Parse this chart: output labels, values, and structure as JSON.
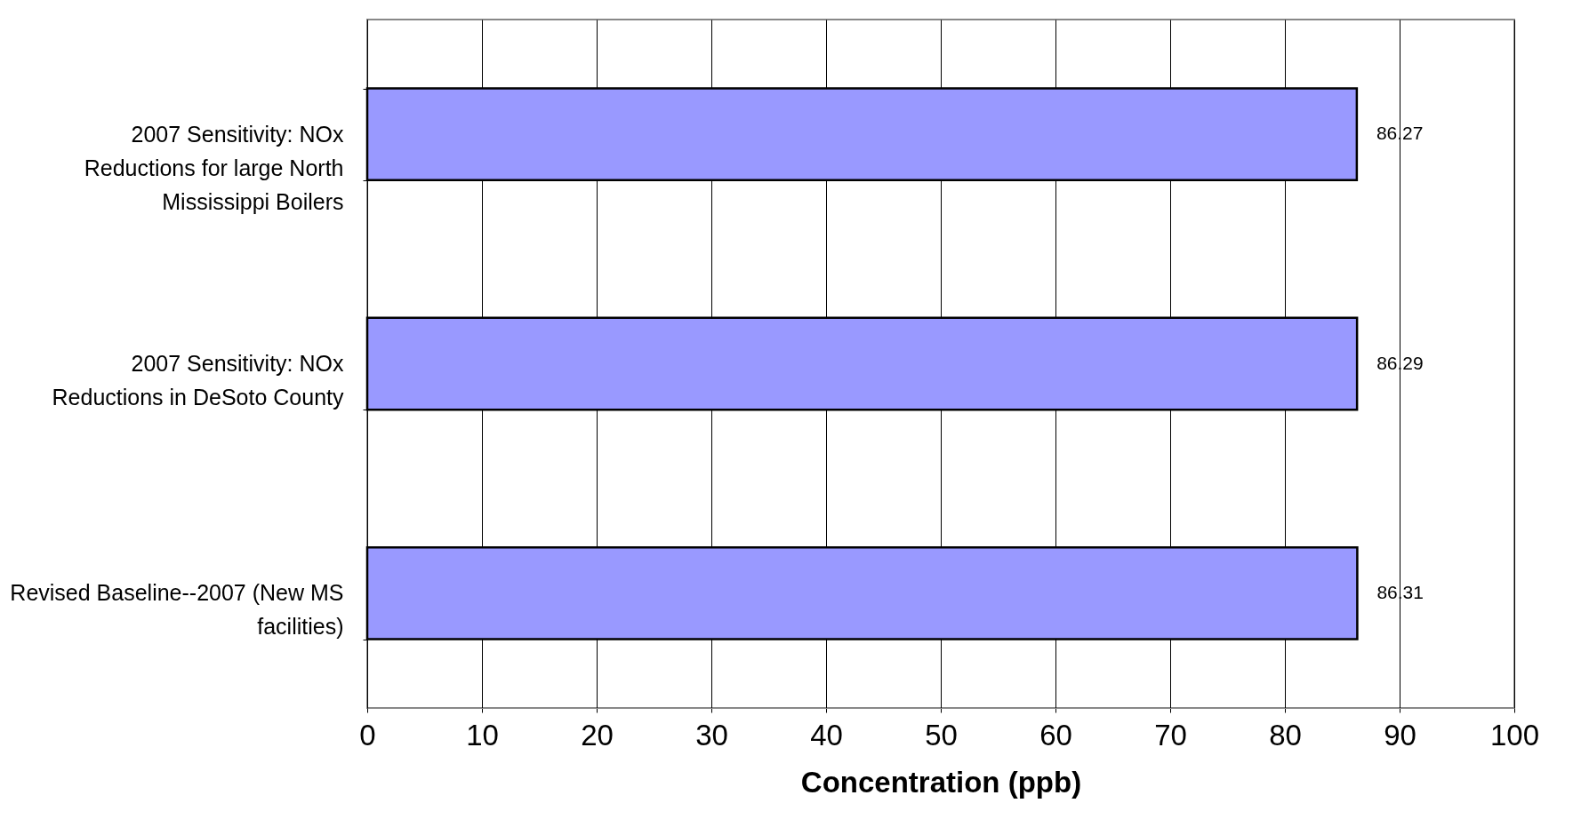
{
  "chart_data": {
    "type": "bar",
    "orientation": "horizontal",
    "xlabel": "Concentration (ppb)",
    "categories": [
      "2007 Sensitivity:  NOx Reductions for large North Mississippi Boilers",
      "2007 Sensitivity:  NOx Reductions in DeSoto County",
      "Revised Baseline--2007 (New MS facilities)"
    ],
    "values": [
      86.27,
      86.29,
      86.31
    ],
    "color": "#9999ff",
    "data_labels": true,
    "xlim": [
      0,
      100
    ],
    "xticks": [
      0,
      10,
      20,
      30,
      40,
      50,
      60,
      70,
      80,
      90,
      100
    ],
    "grid": "x"
  }
}
